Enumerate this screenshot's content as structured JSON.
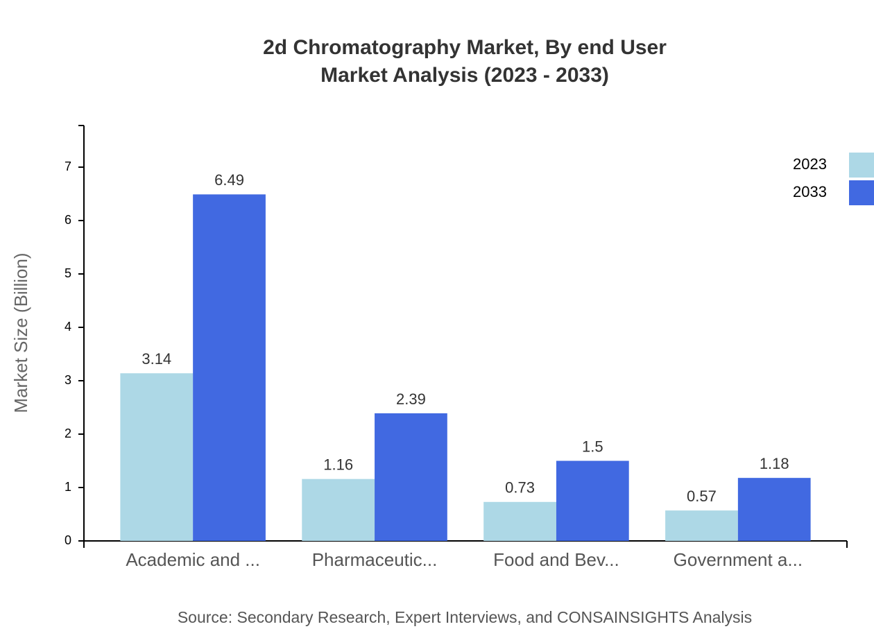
{
  "chart_data": {
    "type": "bar",
    "title": "2d Chromatography Market, By end User",
    "subtitle": "Market Analysis (2023 - 2033)",
    "y_label": "Market Size (Billion)",
    "source": "Source: Secondary Research, Expert Interviews, and CONSAINSIGHTS Analysis",
    "categories": [
      "Academic and ...",
      "Pharmaceutic...",
      "Food and Bev...",
      "Government a..."
    ],
    "series": [
      {
        "name": "2023",
        "color": "#add8e6",
        "values": [
          3.14,
          1.16,
          0.73,
          0.57
        ]
      },
      {
        "name": "2033",
        "color": "#4169e1",
        "values": [
          6.49,
          2.39,
          1.5,
          1.18
        ]
      }
    ],
    "ylim": [
      0,
      7.78
    ],
    "yticks": [
      0,
      1,
      2,
      3,
      4,
      5,
      6,
      7
    ],
    "legend": "top-right"
  }
}
